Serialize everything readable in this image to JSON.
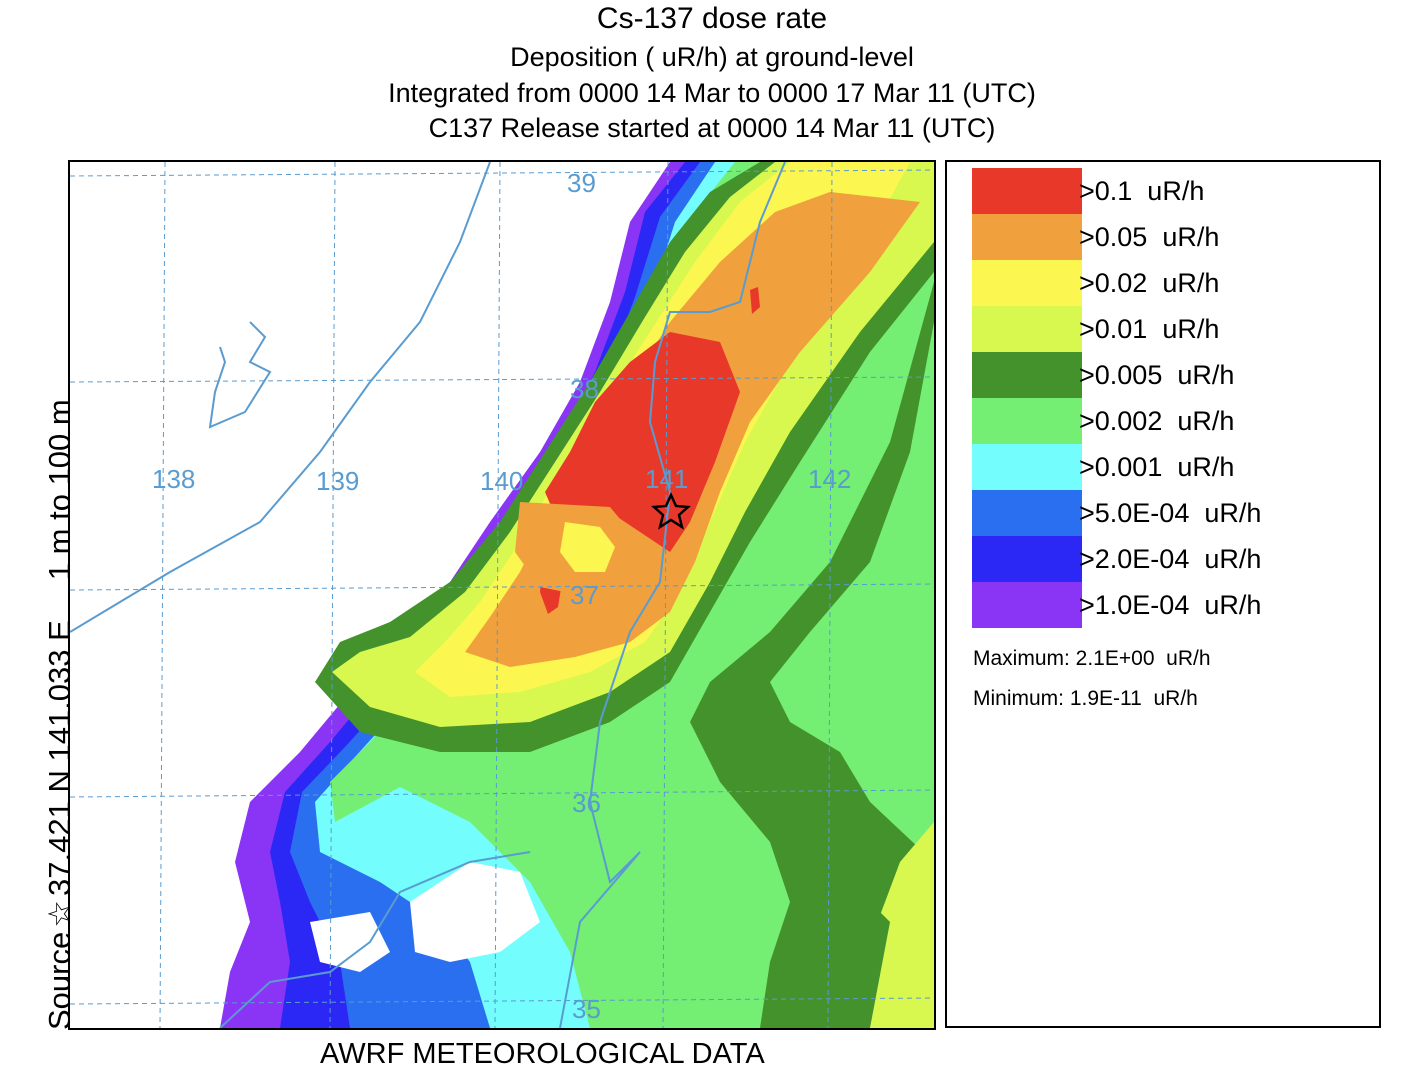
{
  "header": {
    "title": "Cs-137 dose rate",
    "line1": "Deposition  ( uR/h) at ground-level",
    "line2": "Integrated from 0000 14 Mar to 0000 17 Mar 11 (UTC)",
    "line3": "C137 Release started at 0000 14 Mar 11 (UTC)"
  },
  "side_label": {
    "source": "Source",
    "coords": "37.421  N 141.033  E",
    "height": "1 m to   100 m"
  },
  "footer": "AWRF METEOROLOGICAL DATA",
  "map": {
    "lon_labels": [
      "138",
      "139",
      "140",
      "141",
      "142"
    ],
    "lat_labels": [
      "39",
      "38",
      "37",
      "36",
      "35"
    ],
    "source_marker_icon": "star-icon",
    "grid_color": "#5a9bd0",
    "coast_color": "#5a9bd0"
  },
  "legend": {
    "items": [
      {
        "label": ">0.1  uR/h",
        "color": "#e8382a"
      },
      {
        "label": ">0.05  uR/h",
        "color": "#f0a03c"
      },
      {
        "label": ">0.02  uR/h",
        "color": "#fcf650"
      },
      {
        "label": ">0.01  uR/h",
        "color": "#d8f850"
      },
      {
        "label": ">0.005  uR/h",
        "color": "#43922b"
      },
      {
        "label": ">0.002  uR/h",
        "color": "#74ee73"
      },
      {
        "label": ">0.001  uR/h",
        "color": "#74fdfd"
      },
      {
        "label": ">5.0E-04  uR/h",
        "color": "#2b6ff1"
      },
      {
        "label": ">2.0E-04  uR/h",
        "color": "#2b28f5"
      },
      {
        "label": ">1.0E-04  uR/h",
        "color": "#8a35f6"
      }
    ],
    "maximum": "Maximum: 2.1E+00  uR/h",
    "minimum": "Minimum: 1.9E-11  uR/h"
  }
}
